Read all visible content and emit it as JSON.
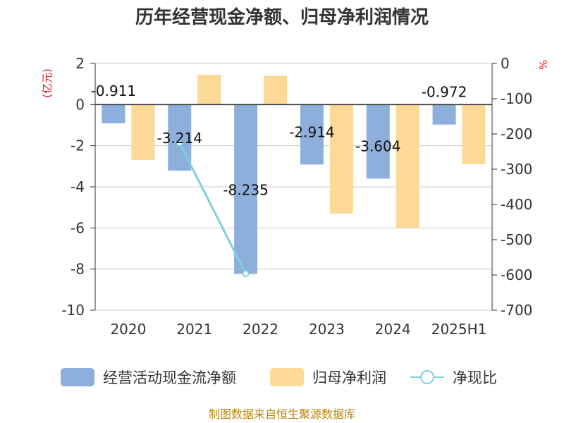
{
  "title": "历年经营现金净额、归母净利润情况",
  "source": "制图数据来自恒生聚源数据库",
  "chart_data": {
    "type": "bar",
    "categories": [
      "2020",
      "2021",
      "2022",
      "2023",
      "2024",
      "2025H1"
    ],
    "series": [
      {
        "name": "经营活动现金流净额",
        "kind": "bar",
        "axis": "left",
        "color": "#8eaedb",
        "values": [
          -0.911,
          -3.214,
          -8.235,
          -2.914,
          -3.604,
          -0.972
        ]
      },
      {
        "name": "归母净利润",
        "kind": "bar",
        "axis": "left",
        "color": "#fdd998",
        "values": [
          -2.7,
          1.45,
          1.4,
          -5.3,
          -6.0,
          -2.9
        ]
      },
      {
        "name": "净现比",
        "kind": "line",
        "axis": "right",
        "color": "#7fd0d8",
        "values": [
          null,
          -226,
          -596,
          null,
          null,
          null
        ]
      }
    ],
    "data_labels": [
      "-0.911",
      "-3.214",
      "-8.235",
      "-2.914",
      "-3.604",
      "-0.972"
    ],
    "y_left": {
      "unit": "(亿元)",
      "ylim": [
        -10,
        2
      ],
      "ticks": [
        "2",
        "0",
        "-2",
        "-4",
        "-6",
        "-8",
        "-10"
      ]
    },
    "y_right": {
      "unit": "%",
      "ylim": [
        -700,
        0
      ],
      "ticks": [
        "0",
        "-100",
        "-200",
        "-300",
        "-400",
        "-500",
        "-600",
        "-700"
      ]
    },
    "grid": true,
    "legend_position": "bottom"
  }
}
